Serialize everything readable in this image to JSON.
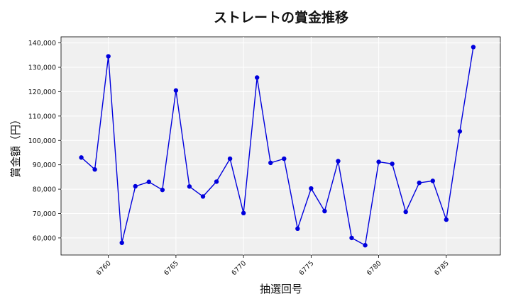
{
  "chart_data": {
    "type": "line",
    "title": "ストレートの賞金推移",
    "xlabel": "抽選回号",
    "ylabel": "賞金額（円）",
    "xlim": [
      6756.5,
      6789
    ],
    "ylim": [
      53000,
      142500
    ],
    "x_ticks": [
      6760,
      6765,
      6770,
      6775,
      6780,
      6785
    ],
    "y_ticks": [
      60000,
      70000,
      80000,
      90000,
      100000,
      110000,
      120000,
      130000,
      140000
    ],
    "y_tick_labels": [
      "60,000",
      "70,000",
      "80,000",
      "90,000",
      "100,000",
      "110,000",
      "120,000",
      "130,000",
      "140,000"
    ],
    "grid": true,
    "series": [
      {
        "color": "#0000dd",
        "x": [
          6758,
          6759,
          6760,
          6761,
          6762,
          6763,
          6764,
          6765,
          6766,
          6767,
          6768,
          6769,
          6770,
          6771,
          6772,
          6773,
          6774,
          6775,
          6776,
          6777,
          6778,
          6779,
          6780,
          6781,
          6782,
          6783,
          6784,
          6785,
          6786,
          6787
        ],
        "values": [
          93000,
          88100,
          134500,
          58000,
          81200,
          83000,
          79700,
          120500,
          81100,
          77000,
          83100,
          92500,
          70200,
          125800,
          90800,
          92500,
          63800,
          80300,
          71000,
          91500,
          60000,
          57000,
          91200,
          90400,
          70700,
          82600,
          83400,
          67500,
          103700,
          138300
        ]
      }
    ]
  }
}
